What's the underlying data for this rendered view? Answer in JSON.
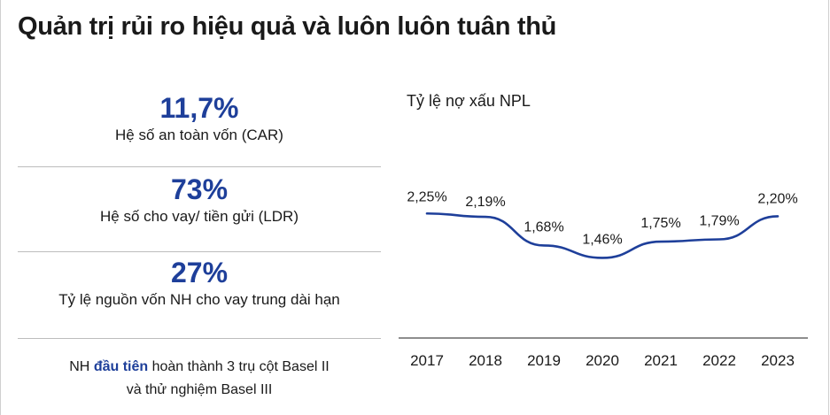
{
  "title": "Quản trị rủi ro hiệu quả và luôn luôn tuân thủ",
  "metrics": [
    {
      "value": "11,7%",
      "label": "Hệ số an toàn vốn (CAR)"
    },
    {
      "value": "73%",
      "label": "Hệ số cho vay/ tiền gửi (LDR)"
    },
    {
      "value": "27%",
      "label": "Tỷ lệ nguồn vốn NH cho vay trung dài hạn"
    }
  ],
  "note": {
    "prefix": "NH ",
    "highlight": "đầu tiên",
    "suffix": " hoàn thành 3 trụ cột Basel II",
    "line2": "và thử nghiệm Basel III"
  },
  "colors": {
    "accent": "#1e3f9a",
    "line": "#1e3f9a",
    "divider": "#bdbdbd"
  },
  "chart_data": {
    "type": "line",
    "title": "Tỷ lệ nợ xấu NPL",
    "x": [
      "2017",
      "2018",
      "2019",
      "2020",
      "2021",
      "2022",
      "2023"
    ],
    "series": [
      {
        "values": [
          2.25,
          2.19,
          1.68,
          1.46,
          1.75,
          1.79,
          2.2
        ],
        "labels": [
          "2,25%",
          "2,19%",
          "1,68%",
          "1,46%",
          "1,75%",
          "1,79%",
          "2,20%"
        ]
      }
    ],
    "xlabel": "",
    "ylabel": "",
    "ylim": [
      1.2,
      2.6
    ],
    "grid": false,
    "legend": "none"
  }
}
